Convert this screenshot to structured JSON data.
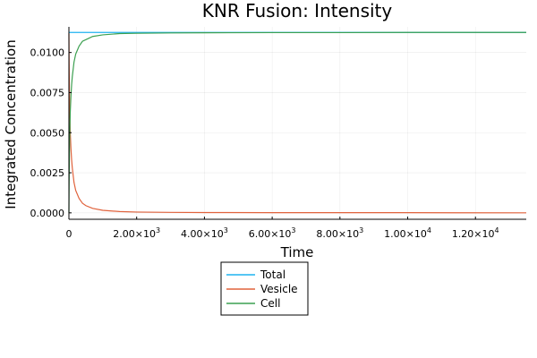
{
  "chart_data": {
    "type": "line",
    "title": "KNR Fusion: Intensity",
    "xlabel": "Time",
    "ylabel": "Integrated Concentration",
    "xlim": [
      0,
      13500
    ],
    "ylim": [
      -0.0004,
      0.0116
    ],
    "grid": true,
    "legend_position": "bottom-center (outside plot)",
    "x_ticks": [
      {
        "value": 0,
        "mantissa": "0",
        "exp": ""
      },
      {
        "value": 2000,
        "mantissa": "2.00×10",
        "exp": "3"
      },
      {
        "value": 4000,
        "mantissa": "4.00×10",
        "exp": "3"
      },
      {
        "value": 6000,
        "mantissa": "6.00×10",
        "exp": "3"
      },
      {
        "value": 8000,
        "mantissa": "8.00×10",
        "exp": "3"
      },
      {
        "value": 10000,
        "mantissa": "1.00×10",
        "exp": "4"
      },
      {
        "value": 12000,
        "mantissa": "1.20×10",
        "exp": "4"
      }
    ],
    "y_ticks": [
      {
        "value": 0.0,
        "label": "0.0000"
      },
      {
        "value": 0.0025,
        "label": "0.0025"
      },
      {
        "value": 0.005,
        "label": "0.0050"
      },
      {
        "value": 0.0075,
        "label": "0.0075"
      },
      {
        "value": 0.01,
        "label": "0.0100"
      }
    ],
    "series": [
      {
        "name": "Total",
        "color": "#1fb3f0",
        "x": [
          0,
          13500
        ],
        "y": [
          0.01125,
          0.01125
        ]
      },
      {
        "name": "Vesicle",
        "color": "#e0623c",
        "x": [
          0,
          5,
          10,
          20,
          40,
          60,
          80,
          100,
          150,
          200,
          300,
          400,
          500,
          700,
          1000,
          1500,
          2000,
          3000,
          4000,
          6000,
          8000,
          10000,
          13500
        ],
        "y": [
          0.0112,
          0.0097,
          0.0085,
          0.0068,
          0.005,
          0.004,
          0.0033,
          0.0028,
          0.0019,
          0.0014,
          0.0009,
          0.0006,
          0.00045,
          0.00028,
          0.00016,
          8e-05,
          5e-05,
          3e-05,
          2e-05,
          1e-05,
          1e-05,
          1e-05,
          0.0
        ]
      },
      {
        "name": "Cell",
        "color": "#3ca051",
        "x": [
          0,
          5,
          10,
          20,
          40,
          60,
          80,
          100,
          150,
          200,
          300,
          400,
          500,
          700,
          1000,
          1500,
          2000,
          3000,
          4000,
          6000,
          8000,
          10000,
          13500
        ],
        "y": [
          0.0,
          0.0016,
          0.0028,
          0.0045,
          0.0063,
          0.0073,
          0.008,
          0.0085,
          0.0094,
          0.0099,
          0.0104,
          0.0107,
          0.0108,
          0.011,
          0.0111,
          0.01118,
          0.0112,
          0.01122,
          0.01123,
          0.01124,
          0.01124,
          0.01125,
          0.01125
        ]
      }
    ]
  }
}
